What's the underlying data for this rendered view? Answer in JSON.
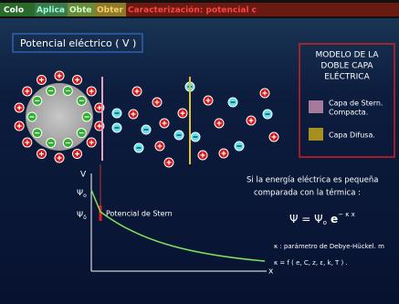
{
  "tabs": [
    "Colo",
    "Aplica",
    "Obte",
    "Obter",
    "Caracterización: potencial c"
  ],
  "heading": "Potencial eléctrico ( V )",
  "model_box": {
    "title": [
      "MODELO DE LA",
      "DOBLE CAPA",
      "ELÉCTRICA"
    ],
    "legend": [
      {
        "label": [
          "Capa de Stern.",
          "Compacta."
        ]
      },
      {
        "label": [
          "Capa Difusa."
        ]
      }
    ]
  },
  "graph": {
    "y_axis": "V",
    "psi_0": "Ψ",
    "psi_0_sub": "o",
    "psi_d": "Ψ",
    "psi_d_sub": "δ",
    "stern_label": "Potencial de Stern",
    "x_axis": "x"
  },
  "text": {
    "condition": [
      "Si la energía eléctrica es pequeña",
      "comparada con la térmica :"
    ],
    "formula": {
      "lhs": "Ψ = Ψ",
      "sub": "o",
      "mid": " e",
      "sup": "− κ x"
    },
    "kappa_def": "κ : parámetro de Debye-Hückel. m",
    "kappa_func": "κ = f ( e, C, z, ε, k, T ) ."
  }
}
